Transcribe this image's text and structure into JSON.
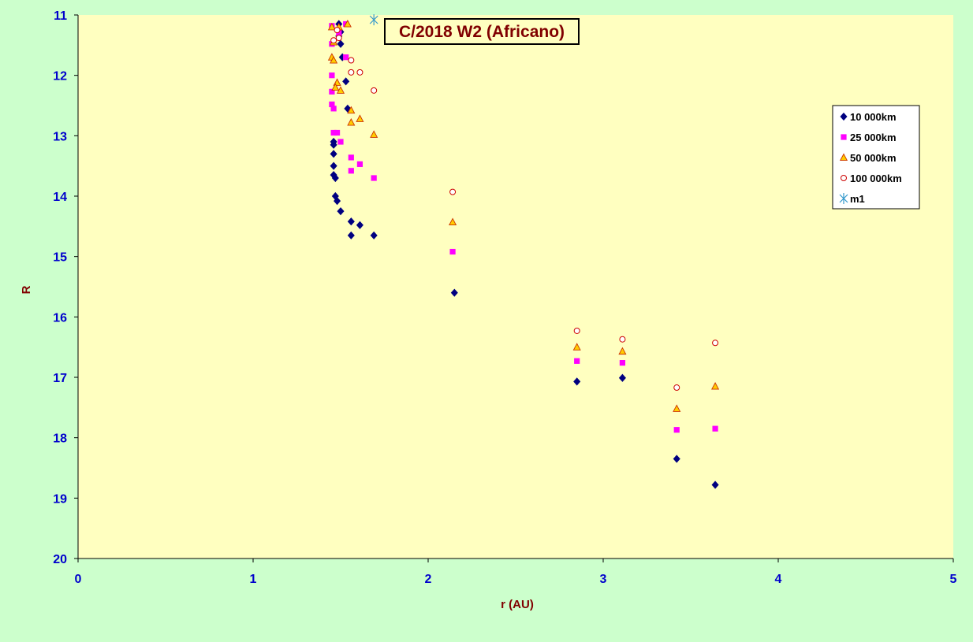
{
  "colors": {
    "page_background": "#ccffcc",
    "plot_background": "#ffffc0",
    "axis_text": "#0000cc",
    "axis_label": "#800000",
    "title_text": "#800000"
  },
  "chart_data": {
    "type": "scatter",
    "title": "C/2018 W2 (Africano)",
    "xlabel": "r (AU)",
    "ylabel": "R",
    "xlim": [
      0,
      5
    ],
    "ylim": [
      11,
      20
    ],
    "y_inverted": true,
    "x_ticks": [
      "0",
      "1",
      "2",
      "3",
      "4",
      "5"
    ],
    "y_ticks": [
      "11",
      "12",
      "13",
      "14",
      "15",
      "16",
      "17",
      "18",
      "19",
      "20"
    ],
    "grid": false,
    "legend_position": "right",
    "series": [
      {
        "name": "10 000km",
        "marker": "diamond",
        "color": "#000080",
        "points": [
          [
            1.49,
            11.15
          ],
          [
            1.5,
            11.28
          ],
          [
            1.49,
            11.35
          ],
          [
            1.5,
            11.48
          ],
          [
            1.51,
            11.7
          ],
          [
            1.53,
            12.1
          ],
          [
            1.54,
            12.55
          ],
          [
            1.46,
            13.1
          ],
          [
            1.46,
            13.15
          ],
          [
            1.46,
            13.3
          ],
          [
            1.46,
            13.5
          ],
          [
            1.46,
            13.65
          ],
          [
            1.47,
            13.7
          ],
          [
            1.47,
            14.0
          ],
          [
            1.48,
            14.08
          ],
          [
            1.5,
            14.25
          ],
          [
            1.56,
            14.42
          ],
          [
            1.61,
            14.48
          ],
          [
            1.56,
            14.65
          ],
          [
            1.69,
            14.65
          ],
          [
            2.15,
            15.6
          ],
          [
            2.85,
            17.07
          ],
          [
            3.11,
            17.01
          ],
          [
            3.42,
            18.35
          ],
          [
            3.64,
            18.78
          ]
        ]
      },
      {
        "name": "25 000km",
        "marker": "square",
        "color": "#ff00ff",
        "points": [
          [
            1.45,
            11.18
          ],
          [
            1.53,
            11.15
          ],
          [
            1.49,
            11.3
          ],
          [
            1.45,
            11.48
          ],
          [
            1.53,
            11.7
          ],
          [
            1.45,
            12.0
          ],
          [
            1.45,
            12.27
          ],
          [
            1.45,
            12.48
          ],
          [
            1.46,
            12.55
          ],
          [
            1.46,
            12.95
          ],
          [
            1.48,
            12.95
          ],
          [
            1.5,
            13.1
          ],
          [
            1.56,
            13.36
          ],
          [
            1.61,
            13.47
          ],
          [
            1.56,
            13.58
          ],
          [
            1.69,
            13.7
          ],
          [
            2.14,
            14.92
          ],
          [
            2.85,
            16.73
          ],
          [
            3.11,
            16.76
          ],
          [
            3.42,
            17.87
          ],
          [
            3.64,
            17.85
          ]
        ]
      },
      {
        "name": "50 000km",
        "marker": "triangle",
        "color": "#ffcc00",
        "stroke": "#cc3300",
        "points": [
          [
            1.45,
            11.2
          ],
          [
            1.49,
            11.2
          ],
          [
            1.54,
            11.15
          ],
          [
            1.46,
            11.45
          ],
          [
            1.45,
            11.7
          ],
          [
            1.46,
            11.75
          ],
          [
            1.48,
            12.12
          ],
          [
            1.47,
            12.2
          ],
          [
            1.5,
            12.25
          ],
          [
            1.56,
            12.58
          ],
          [
            1.56,
            12.78
          ],
          [
            1.61,
            12.72
          ],
          [
            1.69,
            12.98
          ],
          [
            2.14,
            14.43
          ],
          [
            2.85,
            16.5
          ],
          [
            3.11,
            16.57
          ],
          [
            3.42,
            17.52
          ],
          [
            3.64,
            17.15
          ]
        ]
      },
      {
        "name": "100 000km",
        "marker": "circle",
        "color": "#ffffff",
        "stroke": "#cc0000",
        "points": [
          [
            1.48,
            11.25
          ],
          [
            1.49,
            11.38
          ],
          [
            1.46,
            11.42
          ],
          [
            1.56,
            11.75
          ],
          [
            1.56,
            11.95
          ],
          [
            1.61,
            11.95
          ],
          [
            1.69,
            12.25
          ],
          [
            2.14,
            13.93
          ],
          [
            2.85,
            16.23
          ],
          [
            3.11,
            16.37
          ],
          [
            3.42,
            17.17
          ],
          [
            3.64,
            16.43
          ]
        ]
      },
      {
        "name": "m1",
        "marker": "asterisk",
        "color": "#3399cc",
        "points": [
          [
            1.69,
            11.08
          ]
        ]
      }
    ]
  }
}
